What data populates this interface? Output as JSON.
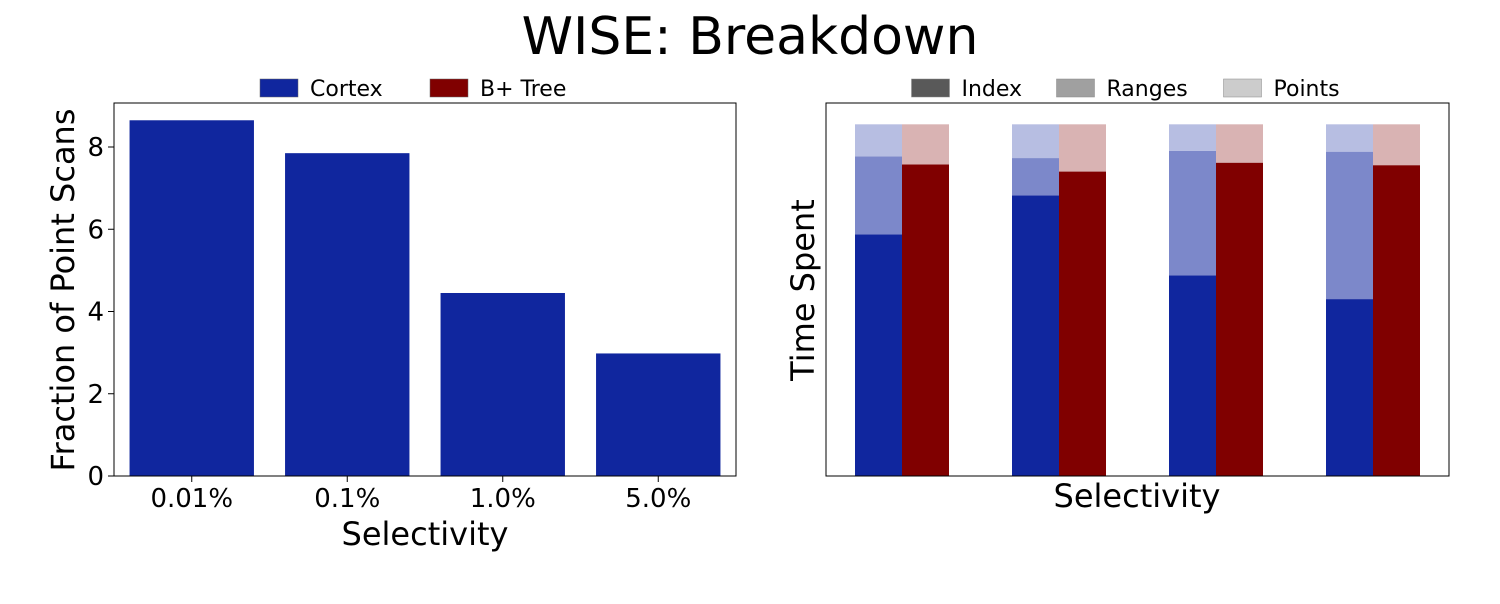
{
  "title": "WISE: Breakdown",
  "chart_data": [
    {
      "type": "bar",
      "title": "",
      "xlabel": "Selectivity",
      "ylabel": "Fraction of Point Scans",
      "categories": [
        "0.01%",
        "0.1%",
        "1.0%",
        "5.0%"
      ],
      "series": [
        {
          "name": "Cortex",
          "values": [
            8.65,
            7.85,
            4.45,
            2.98
          ],
          "color": "#10269e"
        }
      ],
      "legend": {
        "position": "top-center",
        "entries": [
          {
            "label": "Cortex",
            "color": "#10269e"
          },
          {
            "label": "B+ Tree",
            "color": "#800000"
          }
        ]
      },
      "ylim": [
        0,
        9.07
      ],
      "yticks": [
        0,
        2,
        4,
        6,
        8
      ],
      "grid": false
    },
    {
      "type": "bar",
      "stacked": true,
      "title": "",
      "xlabel": "Selectivity",
      "ylabel": "Time Spent",
      "categories": [
        "",
        "",
        "",
        ""
      ],
      "yticks": [],
      "ylim": [
        0,
        1.05
      ],
      "groups": [
        {
          "name": "Cortex",
          "color": "#10269e",
          "series": [
            {
              "name": "Index",
              "values": [
                0.68,
                0.79,
                0.565,
                0.498
              ]
            },
            {
              "name": "Ranges",
              "values": [
                0.22,
                0.105,
                0.35,
                0.415
              ]
            },
            {
              "name": "Points",
              "values": [
                0.09,
                0.095,
                0.075,
                0.077
              ]
            }
          ]
        },
        {
          "name": "B+ Tree",
          "color": "#800000",
          "series": [
            {
              "name": "Index",
              "values": [
                0.877,
                0.857,
                0.882,
                0.875
              ]
            },
            {
              "name": "Ranges",
              "values": [
                0.0,
                0.0,
                0.0,
                0.0
              ]
            },
            {
              "name": "Points",
              "values": [
                0.113,
                0.133,
                0.108,
                0.115
              ]
            }
          ]
        }
      ],
      "legend": {
        "position": "top-center",
        "entries": [
          {
            "label": "Index",
            "color": "#595959"
          },
          {
            "label": "Ranges",
            "color": "#a0a0a0"
          },
          {
            "label": "Points",
            "color": "#cccccc"
          }
        ]
      },
      "grid": false
    }
  ]
}
